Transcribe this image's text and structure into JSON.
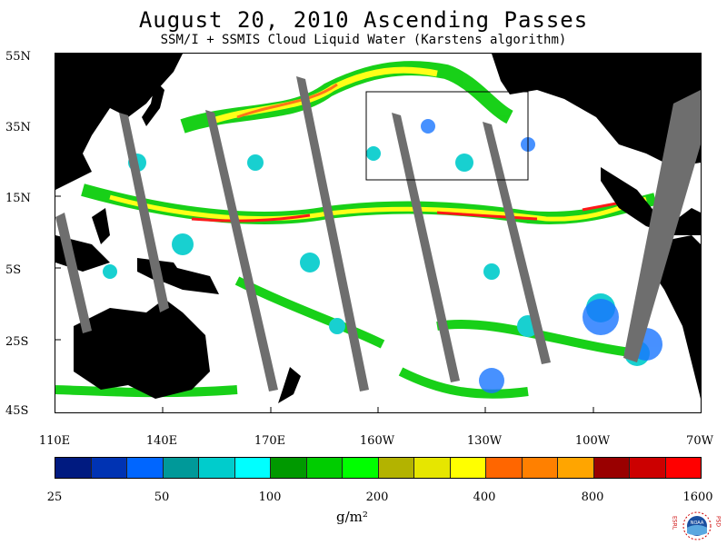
{
  "title": "August 20, 2010  Ascending Passes",
  "subtitle": "SSM/I + SSMIS Cloud Liquid Water (Karstens algorithm)",
  "latitude_labels": [
    "55N",
    "35N",
    "15N",
    "5S",
    "25S",
    "45S"
  ],
  "longitude_labels": [
    "110E",
    "140E",
    "170E",
    "160W",
    "130W",
    "100W",
    "70W"
  ],
  "colorbar": {
    "colors": [
      "#001a80",
      "#0033b3",
      "#0066ff",
      "#009999",
      "#00cccc",
      "#00ffff",
      "#009900",
      "#00cc00",
      "#00ff00",
      "#b3b300",
      "#e6e600",
      "#ffff00",
      "#ff6600",
      "#ff8000",
      "#ffa500",
      "#990000",
      "#cc0000",
      "#ff0000"
    ],
    "tick_labels": [
      "25",
      "50",
      "100",
      "200",
      "400",
      "800",
      "1600"
    ],
    "units": "g/m²"
  },
  "map": {
    "land_color": "#000000",
    "swath_gap_color": "#6e6e6e",
    "ocean_clear_color": "#ffffff"
  },
  "logo": {
    "left_text": "ESRL",
    "center_text": "NOAA",
    "right_text": "PSD"
  }
}
